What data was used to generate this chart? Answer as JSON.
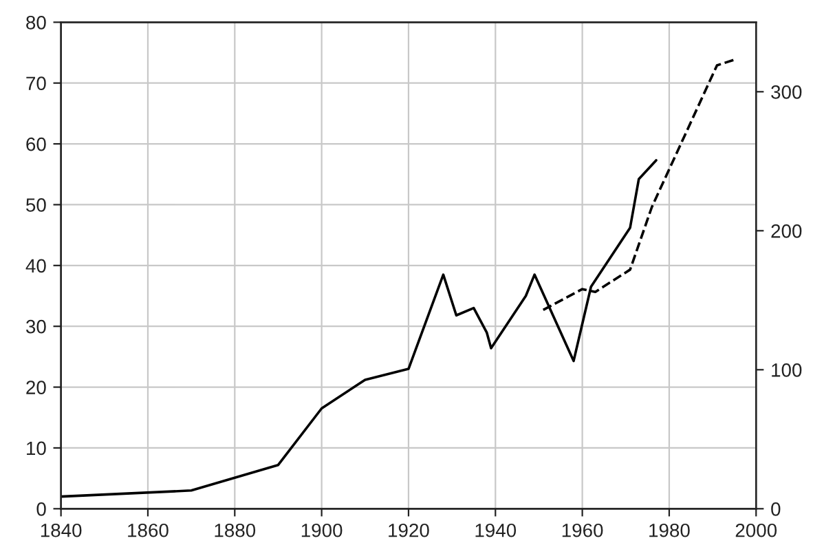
{
  "chart_data": {
    "type": "line",
    "xlim": [
      1840,
      2000
    ],
    "xticks": [
      1840,
      1860,
      1880,
      1900,
      1920,
      1940,
      1960,
      1980,
      2000
    ],
    "ylim": [
      0,
      80
    ],
    "yticks": [
      0,
      10,
      20,
      30,
      40,
      50,
      60,
      70,
      80
    ],
    "y2lim": [
      0,
      350
    ],
    "y2ticks": [
      0,
      100,
      200,
      300
    ],
    "grid": true,
    "legend": false,
    "series": [
      {
        "color": "#000000",
        "line_style": "solid",
        "x": [
          1840,
          1870,
          1890,
          1900,
          1910,
          1920,
          1928,
          1931,
          1935,
          1938,
          1939,
          1947,
          1949,
          1958,
          1962,
          1971,
          1973,
          1977
        ],
        "values": [
          2.0,
          3.0,
          7.2,
          16.5,
          21.2,
          23,
          38.5,
          31.8,
          33,
          29,
          26.4,
          35,
          38.5,
          24.3,
          36.5,
          46.2,
          54.2,
          57.3
        ]
      },
      {
        "color": "#000000",
        "line_style": "dashed",
        "axis": "y2",
        "x": [
          1951,
          1960,
          1963,
          1971,
          1976,
          1991,
          1995
        ],
        "values": [
          143,
          158,
          156,
          172,
          217,
          319,
          323
        ]
      }
    ]
  }
}
